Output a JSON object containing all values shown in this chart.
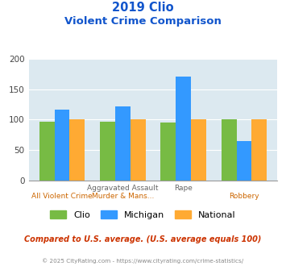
{
  "title_line1": "2019 Clio",
  "title_line2": "Violent Crime Comparison",
  "cat_labels_top": [
    "",
    "Aggravated Assault",
    "Rape",
    ""
  ],
  "cat_labels_bot": [
    "All Violent Crime",
    "Murder & Mans...",
    "",
    "Robbery"
  ],
  "series": {
    "Clio": [
      97,
      97,
      95,
      100
    ],
    "Michigan": [
      116,
      122,
      170,
      65
    ],
    "National": [
      100,
      100,
      100,
      100
    ]
  },
  "colors": {
    "Clio": "#77bb44",
    "Michigan": "#3399ff",
    "National": "#ffaa33"
  },
  "ylim": [
    0,
    200
  ],
  "yticks": [
    0,
    50,
    100,
    150,
    200
  ],
  "plot_bg": "#dce9f0",
  "title_color": "#1155cc",
  "xlabel_top_color": "#666666",
  "xlabel_bot_color": "#cc6600",
  "footer_note": "Compared to U.S. average. (U.S. average equals 100)",
  "footer_note_color": "#cc3300",
  "footer_url": "© 2025 CityRating.com - https://www.cityrating.com/crime-statistics/",
  "footer_url_color": "#888888",
  "legend_labels": [
    "Clio",
    "Michigan",
    "National"
  ],
  "bar_width": 0.25
}
